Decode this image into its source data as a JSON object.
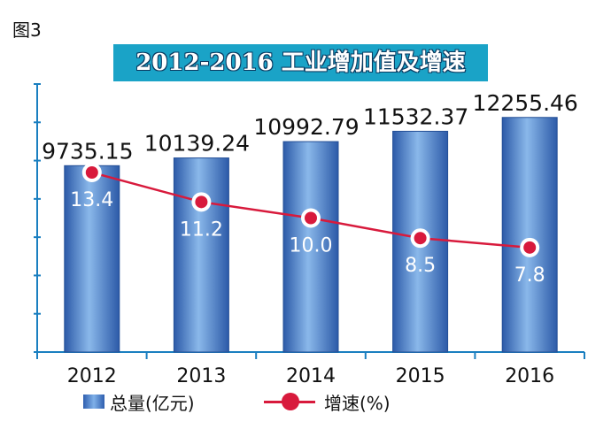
{
  "figure_label": "图3",
  "chart_data": {
    "type": "bar",
    "title": "2012-2016 工业增加值及增速",
    "categories": [
      "2012",
      "2013",
      "2014",
      "2015",
      "2016"
    ],
    "series": [
      {
        "name": "总量(亿元)",
        "type": "bar",
        "values": [
          9735.15,
          10139.24,
          10992.79,
          11532.37,
          12255.46
        ],
        "labels": [
          "9735.15",
          "10139.24",
          "10992.79",
          "11532.37",
          "12255.46"
        ]
      },
      {
        "name": "增速(%)",
        "type": "line",
        "values": [
          13.4,
          11.2,
          10.0,
          8.5,
          7.8
        ],
        "labels": [
          "13.4",
          "11.2",
          "10.0",
          "8.5",
          "7.8"
        ]
      }
    ],
    "bar_ylim": [
      0,
      14000
    ],
    "line_ylim": [
      0,
      20
    ],
    "grid": false,
    "legend_position": "bottom",
    "colors": {
      "bar": "#3a6fc4",
      "bar_light": "#8ab8ea",
      "line": "#d81a3c",
      "axis": "#1a7fc0",
      "title_bg": "#1aa3c7"
    }
  },
  "legend": {
    "bar_label": "总量(亿元)",
    "line_label": "增速(%)"
  }
}
